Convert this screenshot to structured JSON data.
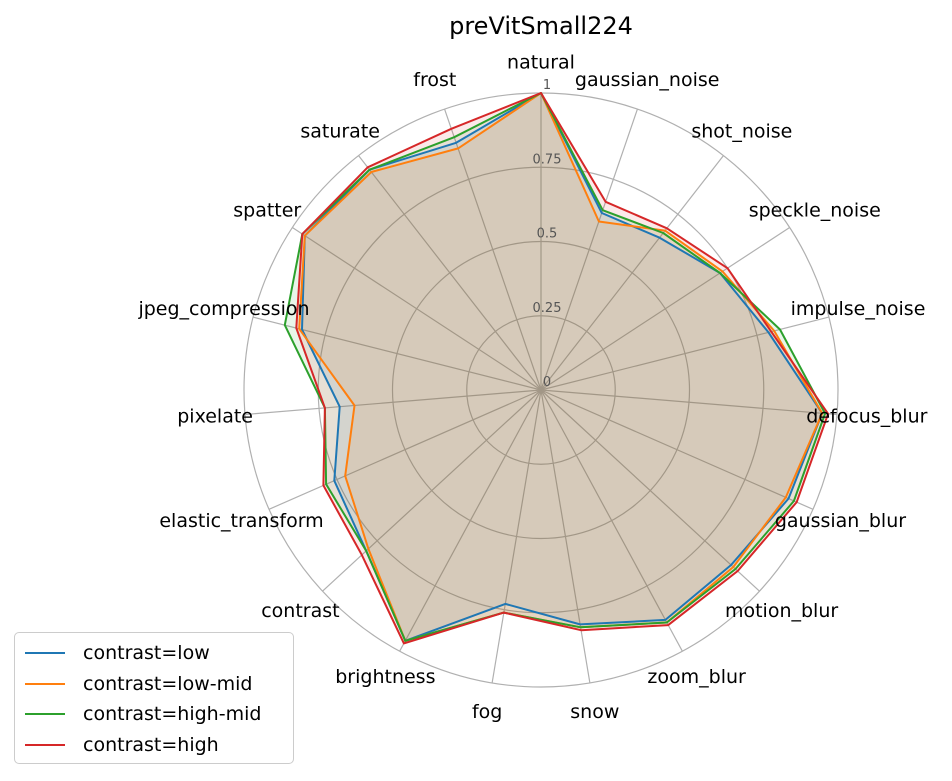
{
  "chart_data": {
    "type": "radar",
    "title": "preVitSmall224",
    "categories": [
      "natural",
      "gaussian_noise",
      "shot_noise",
      "speckle_noise",
      "impulse_noise",
      "defocus_blur",
      "gaussian_blur",
      "motion_blur",
      "zoom_blur",
      "snow",
      "fog",
      "brightness",
      "contrast",
      "elastic_transform",
      "pixelate",
      "jpeg_compression",
      "spatter",
      "saturate",
      "frost"
    ],
    "rlim": [
      0,
      1
    ],
    "rticks": [
      "0",
      "0.25",
      "0.5",
      "0.75",
      "1"
    ],
    "grid": true,
    "legend_position": "bottom-left",
    "series": [
      {
        "name": "contrast=low",
        "color": "#1f77b4",
        "values": [
          1.0,
          0.63,
          0.65,
          0.72,
          0.79,
          0.95,
          0.91,
          0.87,
          0.88,
          0.8,
          0.73,
          0.96,
          0.8,
          0.76,
          0.68,
          0.83,
          0.95,
          0.94,
          0.88
        ]
      },
      {
        "name": "contrast=low-mid",
        "color": "#ff7f0e",
        "values": [
          1.0,
          0.6,
          0.68,
          0.73,
          0.81,
          0.95,
          0.9,
          0.88,
          0.89,
          0.81,
          0.76,
          0.96,
          0.79,
          0.72,
          0.63,
          0.84,
          0.95,
          0.93,
          0.86
        ]
      },
      {
        "name": "contrast=high-mid",
        "color": "#2ca02c",
        "values": [
          1.0,
          0.64,
          0.67,
          0.72,
          0.83,
          0.96,
          0.93,
          0.89,
          0.89,
          0.81,
          0.76,
          0.96,
          0.8,
          0.79,
          0.73,
          0.89,
          0.96,
          0.94,
          0.9
        ]
      },
      {
        "name": "contrast=high",
        "color": "#d62728",
        "values": [
          1.0,
          0.67,
          0.69,
          0.75,
          0.8,
          0.97,
          0.94,
          0.9,
          0.9,
          0.82,
          0.76,
          0.97,
          0.82,
          0.8,
          0.73,
          0.85,
          0.96,
          0.95,
          0.93
        ]
      }
    ]
  }
}
